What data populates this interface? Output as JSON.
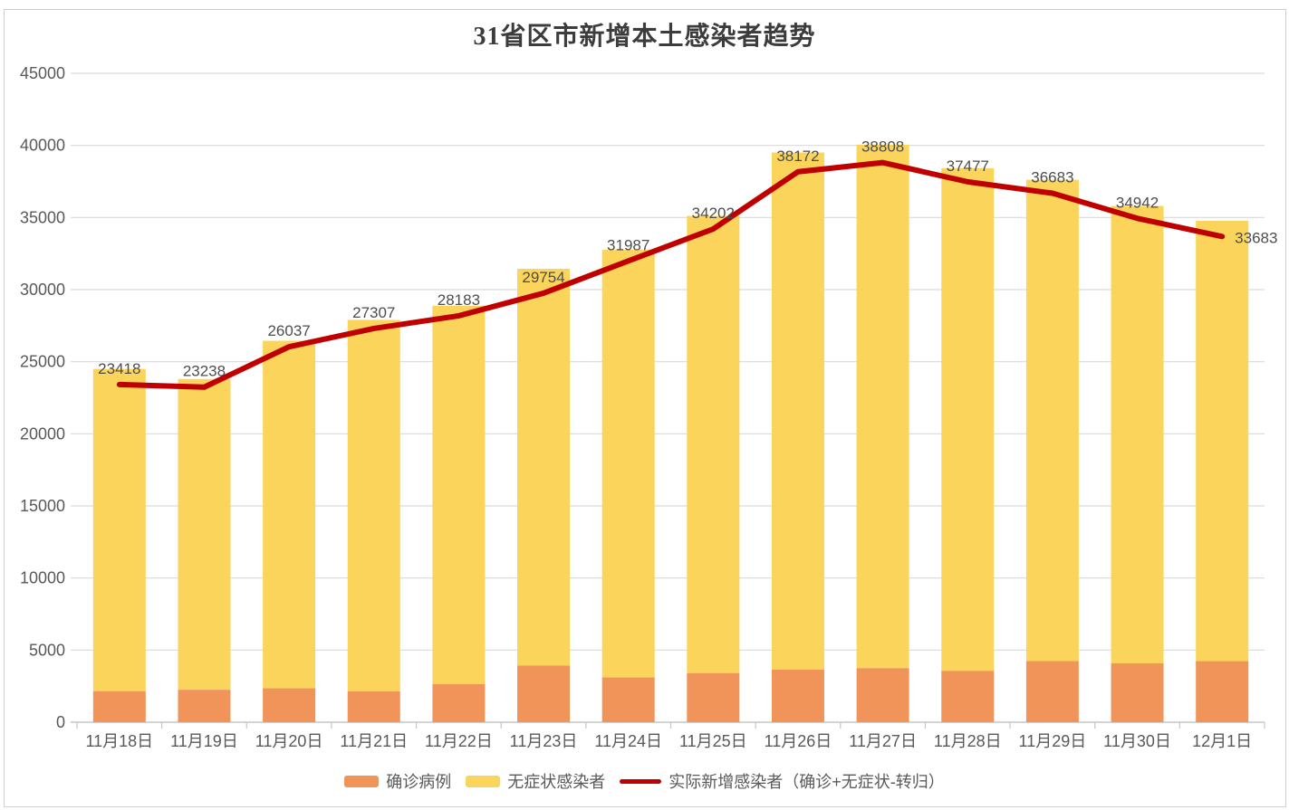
{
  "chart_data": {
    "type": "bar",
    "subtype": "stacked-bar-with-line-overlay",
    "title": "31省区市新增本土感染者趋势",
    "categories": [
      "11月18日",
      "11月19日",
      "11月20日",
      "11月21日",
      "11月22日",
      "11月23日",
      "11月24日",
      "11月25日",
      "11月26日",
      "11月27日",
      "11月28日",
      "11月29日",
      "11月30日",
      "12月1日"
    ],
    "series": [
      {
        "name": "确诊病例",
        "type": "bar",
        "stack": "total",
        "color": "#F0945A",
        "values": [
          2150,
          2250,
          2350,
          2145,
          2641,
          3927,
          3103,
          3405,
          3648,
          3748,
          3561,
          4236,
          4080,
          4233
        ]
      },
      {
        "name": "无症状感染者",
        "type": "bar",
        "stack": "total",
        "color": "#FBD45B",
        "values": [
          22350,
          21550,
          24100,
          25754,
          26242,
          27517,
          29654,
          31709,
          35858,
          36304,
          34860,
          33376,
          31720,
          30539
        ]
      },
      {
        "name": "实际新增感染者（确诊+无症状-转归）",
        "type": "line",
        "color": "#C00000",
        "data_labels": true,
        "values": [
          23418,
          23238,
          26037,
          27307,
          28183,
          29754,
          31987,
          34202,
          38172,
          38808,
          37477,
          36683,
          34942,
          33683
        ]
      }
    ],
    "xlabel": "",
    "ylabel": "",
    "ylim": [
      0,
      45000
    ],
    "ytick_interval": 5000,
    "yticks": [
      0,
      5000,
      10000,
      15000,
      20000,
      25000,
      30000,
      35000,
      40000,
      45000
    ],
    "grid": "horizontal",
    "grid_color": "#d9d9d9",
    "axis_text_color": "#595959",
    "legend_position": "bottom"
  },
  "legend": {
    "items": [
      {
        "label": "确诊病例",
        "color": "#F0945A",
        "marker": "rect"
      },
      {
        "label": "无症状感染者",
        "color": "#FBD45B",
        "marker": "rect"
      },
      {
        "label": "实际新增感染者（确诊+无症状-转归）",
        "color": "#C00000",
        "marker": "line"
      }
    ]
  }
}
